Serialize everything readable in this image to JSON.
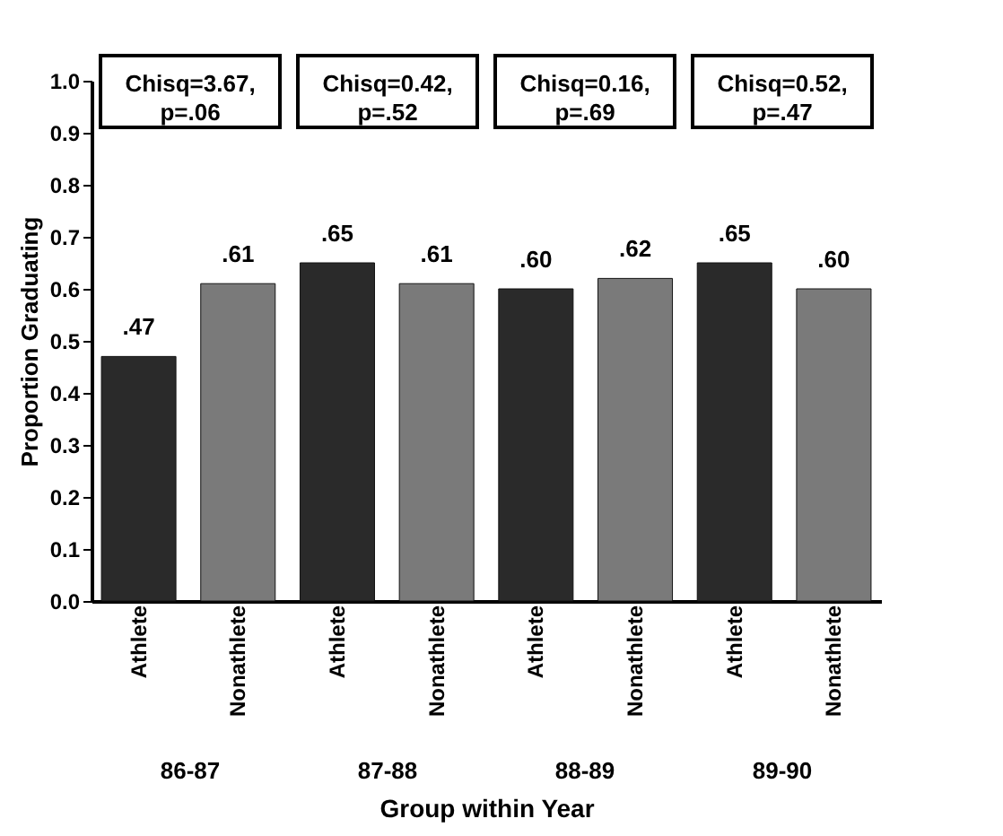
{
  "chart_data": {
    "type": "bar",
    "categories": [
      "Athlete",
      "Nonathlete",
      "Athlete",
      "Nonathlete",
      "Athlete",
      "Nonathlete",
      "Athlete",
      "Nonathlete"
    ],
    "values": [
      0.47,
      0.61,
      0.65,
      0.61,
      0.6,
      0.62,
      0.65,
      0.6
    ],
    "value_labels": [
      ".47",
      ".61",
      ".65",
      ".61",
      ".60",
      ".62",
      ".65",
      ".60"
    ],
    "colors": [
      "#2a2a2a",
      "#7a7a7a",
      "#2a2a2a",
      "#7a7a7a",
      "#2a2a2a",
      "#7a7a7a",
      "#2a2a2a",
      "#7a7a7a"
    ],
    "ylabel": "Proportion Graduating",
    "xlabel": "Group within Year",
    "ylim": [
      0,
      1.0
    ],
    "yticks": [
      {
        "value": 0,
        "label": "0.0"
      },
      0.1,
      0.2,
      0.3,
      0.4,
      0.5,
      0.6,
      0.7,
      0.8,
      0.9,
      {
        "value": 1,
        "label": "1.0"
      }
    ],
    "annotations": [
      "Chisq=3.67,\np=.06",
      "Chisq=0.42,\np=.52",
      "Chisq=0.16,\np=.69",
      "Chisq=0.52,\np=.47",
      "86-87",
      "87-88",
      "88-89",
      "89-90"
    ],
    "grid": false
  }
}
